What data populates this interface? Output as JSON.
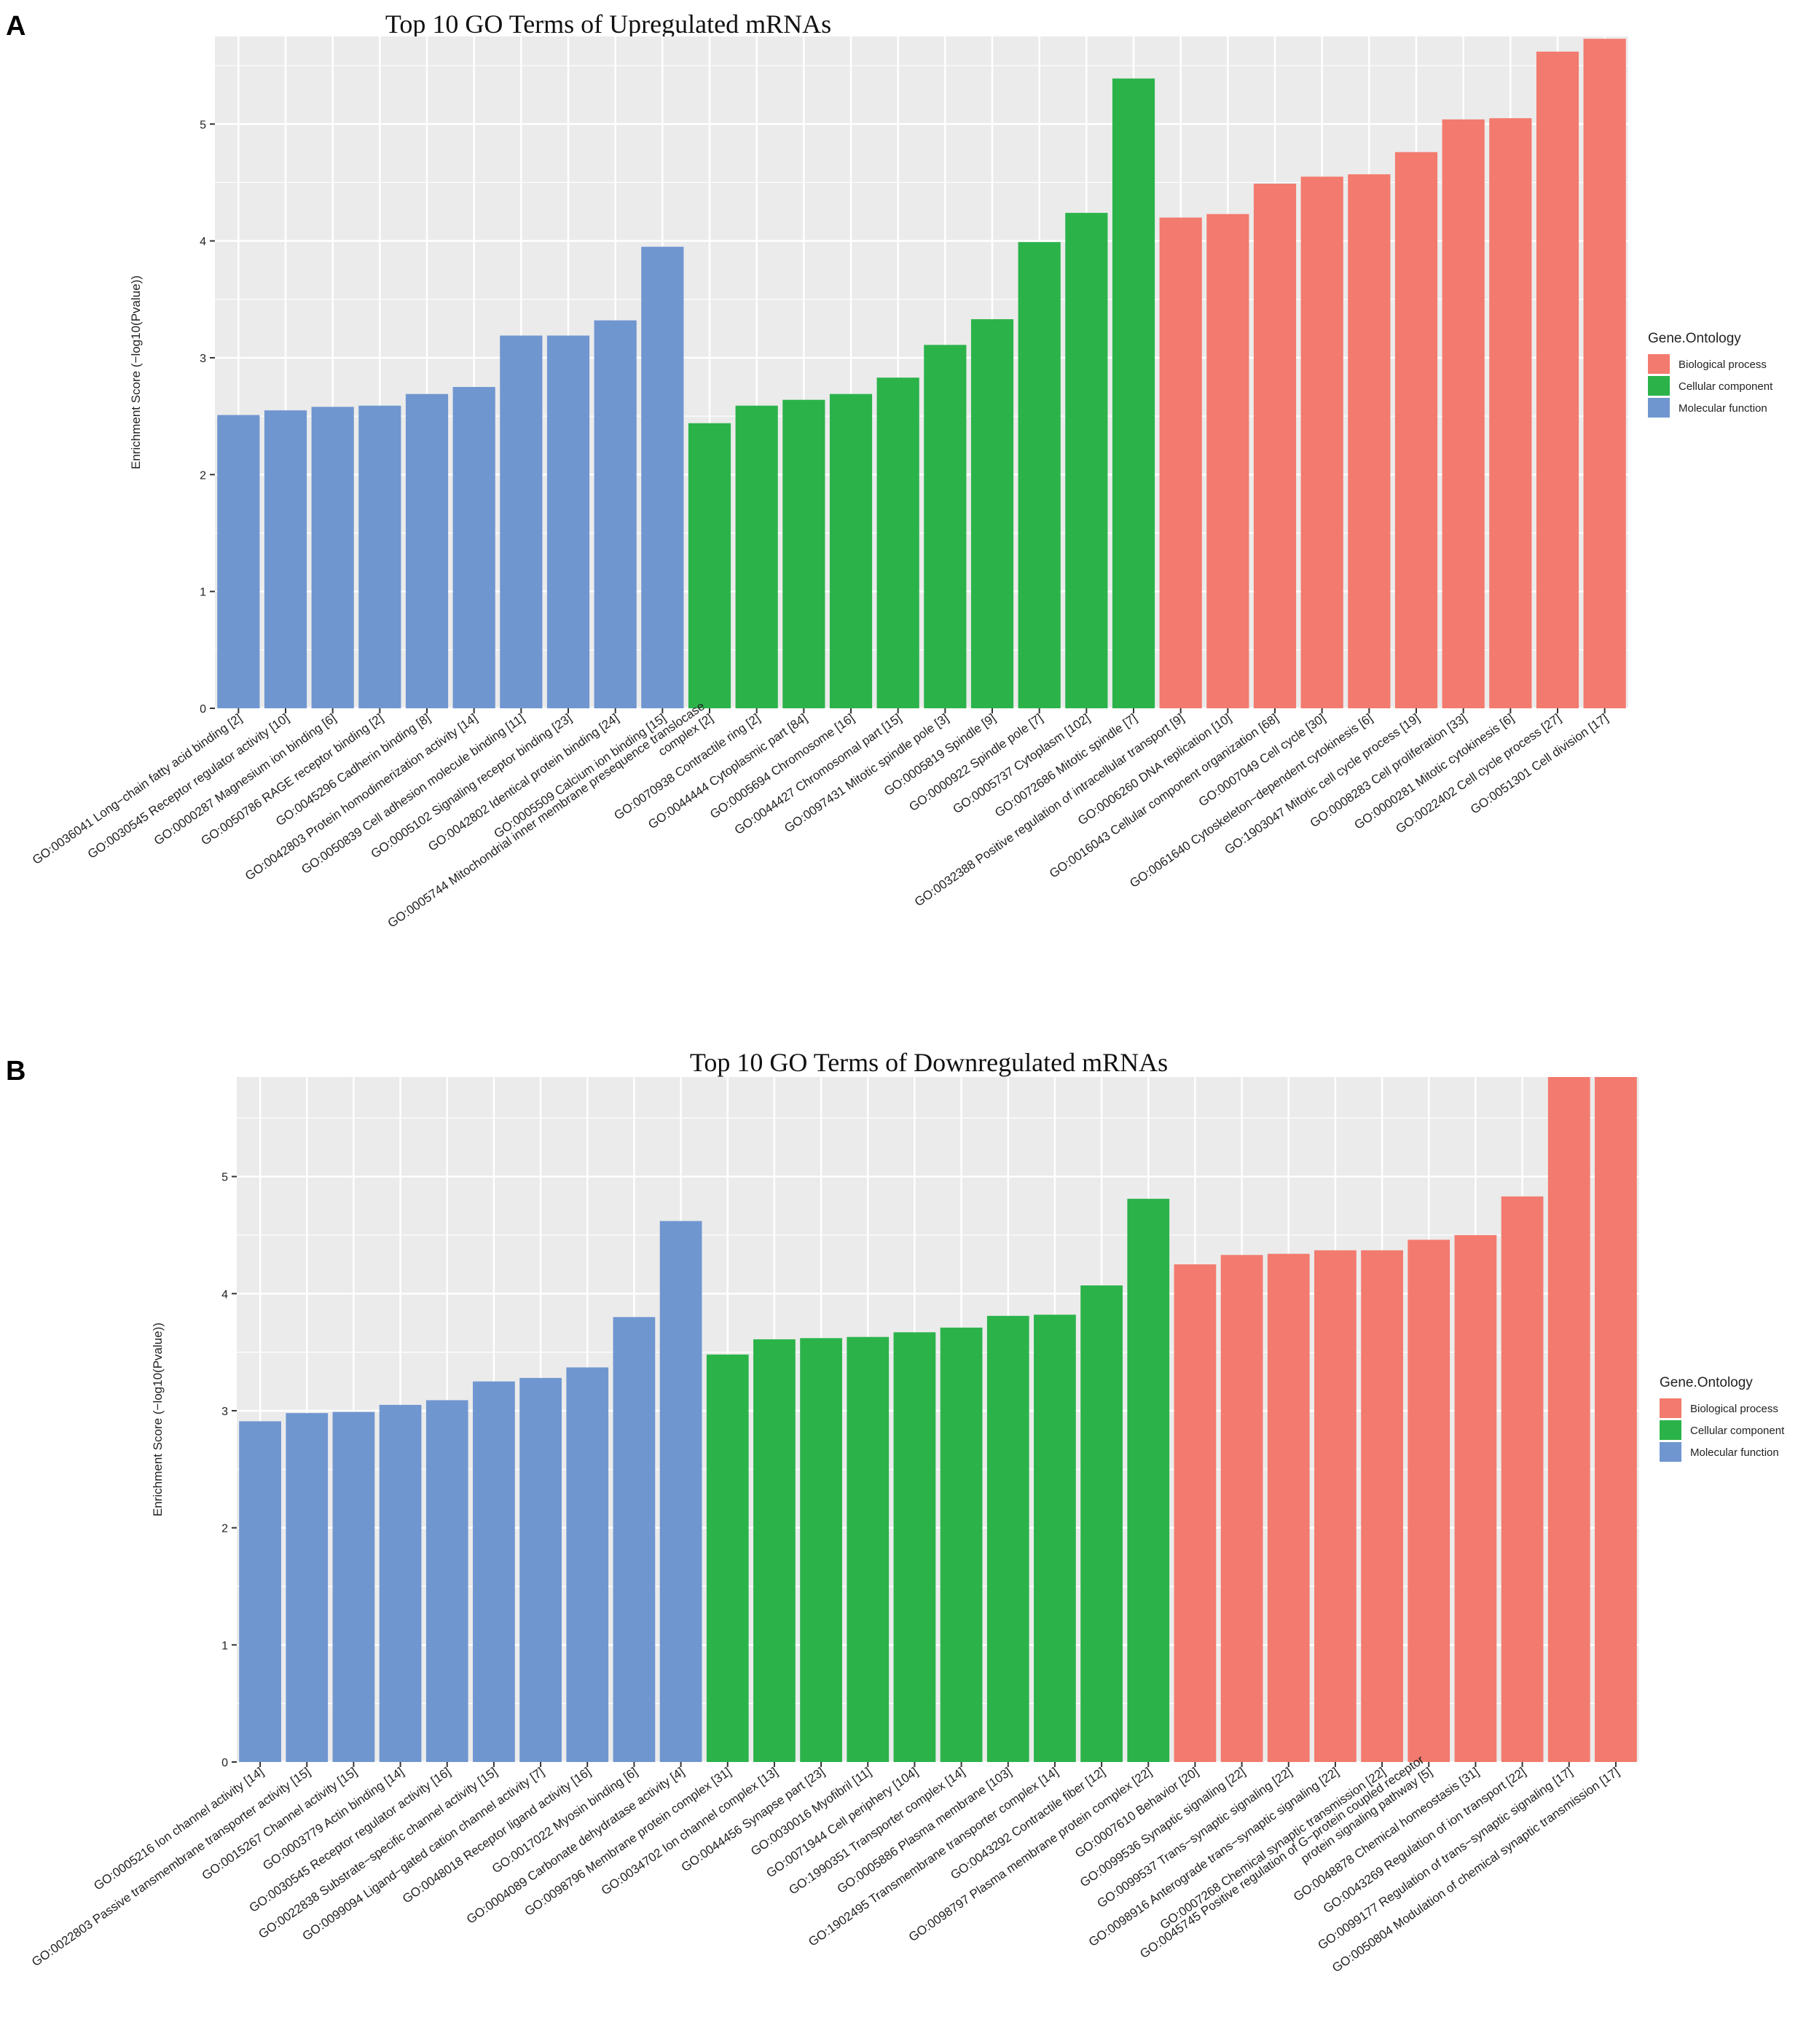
{
  "colors": {
    "Biological process": "#F37A6E",
    "Cellular component": "#2BB34A",
    "Molecular function": "#7096D0",
    "panel_bg": "#EBEBEB",
    "grid": "#FFFFFF",
    "text": "#222222"
  },
  "chart_data": [
    {
      "panel_label": "A",
      "type": "bar",
      "title": "Top 10 GO Terms of Upregulated  mRNAs",
      "xlabel": "",
      "ylabel": "Enrichment Score (−log10(Pvalue))",
      "ylim": [
        0,
        5.75
      ],
      "yticks": [
        "0",
        "1",
        "2",
        "3",
        "4",
        "5"
      ],
      "legend": {
        "title": "Gene.Ontology",
        "position": "right",
        "items": [
          "Biological process",
          "Cellular component",
          "Molecular function"
        ]
      },
      "categories": [
        "GO:0036041 Long−chain fatty acid binding [2]",
        "GO:0030545 Receptor regulator activity [10]",
        "GO:0000287 Magnesium ion binding [6]",
        "GO:0050786 RAGE receptor binding [2]",
        "GO:0045296 Cadherin binding [8]",
        "GO:0042803 Protein homodimerization activity [14]",
        "GO:0050839 Cell adhesion molecule binding [11]",
        "GO:0005102 Signaling receptor binding [23]",
        "GO:0042802 Identical protein binding [24]",
        "GO:0005509 Calcium ion binding [15]",
        "GO:0005744 Mitochondrial inner membrane presequence translocase complex [2]",
        "GO:0070938 Contractile ring [2]",
        "GO:0044444 Cytoplasmic part [84]",
        "GO:0005694 Chromosome [16]",
        "GO:0044427 Chromosomal part [15]",
        "GO:0097431 Mitotic spindle pole [3]",
        "GO:0005819 Spindle [9]",
        "GO:0000922 Spindle pole [7]",
        "GO:0005737 Cytoplasm [102]",
        "GO:0072686 Mitotic spindle [7]",
        "GO:0032388 Positive regulation of intracellular transport [9]",
        "GO:0006260 DNA replication [10]",
        "GO:0016043 Cellular component organization [68]",
        "GO:0007049 Cell cycle [30]",
        "GO:0061640 Cytoskeleton−dependent cytokinesis [6]",
        "GO:1903047 Mitotic cell cycle process [19]",
        "GO:0008283 Cell proliferation [33]",
        "GO:0000281 Mitotic cytokinesis [6]",
        "GO:0022402 Cell cycle process [27]",
        "GO:0051301 Cell division [17]"
      ],
      "label_lines": {
        "10": [
          "GO:0005744 Mitochondrial inner membrane presequence translocase",
          "complex [2]"
        ]
      },
      "values": [
        2.51,
        2.55,
        2.58,
        2.59,
        2.69,
        2.75,
        3.19,
        3.19,
        3.32,
        3.95,
        2.44,
        2.59,
        2.64,
        2.69,
        2.83,
        3.11,
        3.33,
        3.99,
        4.24,
        5.39,
        4.2,
        4.23,
        4.49,
        4.55,
        4.57,
        4.76,
        5.04,
        5.05,
        5.62,
        5.73
      ],
      "groups": [
        "Molecular function",
        "Molecular function",
        "Molecular function",
        "Molecular function",
        "Molecular function",
        "Molecular function",
        "Molecular function",
        "Molecular function",
        "Molecular function",
        "Molecular function",
        "Cellular component",
        "Cellular component",
        "Cellular component",
        "Cellular component",
        "Cellular component",
        "Cellular component",
        "Cellular component",
        "Cellular component",
        "Cellular component",
        "Cellular component",
        "Biological process",
        "Biological process",
        "Biological process",
        "Biological process",
        "Biological process",
        "Biological process",
        "Biological process",
        "Biological process",
        "Biological process",
        "Biological process"
      ]
    },
    {
      "panel_label": "B",
      "type": "bar",
      "title": "Top 10 GO Terms of Downregulated  mRNAs",
      "xlabel": "",
      "ylabel": "Enrichment Score (−log10(Pvalue))",
      "ylim": [
        0,
        5.85
      ],
      "yticks": [
        "0",
        "1",
        "2",
        "3",
        "4",
        "5"
      ],
      "legend": {
        "title": "Gene.Ontology",
        "position": "right",
        "items": [
          "Biological process",
          "Cellular component",
          "Molecular function"
        ]
      },
      "categories": [
        "GO:0005216 Ion channel activity [14]",
        "GO:0022803 Passive transmembrane transporter activity [15]",
        "GO:0015267 Channel activity [15]",
        "GO:0003779 Actin binding [14]",
        "GO:0030545 Receptor regulator activity [16]",
        "GO:0022838 Substrate−specific channel activity [15]",
        "GO:0099094 Ligand−gated cation channel activity [7]",
        "GO:0048018 Receptor ligand activity [16]",
        "GO:0017022 Myosin binding [6]",
        "GO:0004089 Carbonate dehydratase activity [4]",
        "GO:0098796 Membrane protein complex [31]",
        "GO:0034702 Ion channel complex [13]",
        "GO:0044456 Synapse part [23]",
        "GO:0030016 Myofibril [11]",
        "GO:0071944 Cell periphery [104]",
        "GO:1990351 Transporter complex [14]",
        "GO:0005886 Plasma membrane [103]",
        "GO:1902495 Transmembrane transporter complex [14]",
        "GO:0043292 Contractile fiber [12]",
        "GO:0098797 Plasma membrane protein complex [22]",
        "GO:0007610 Behavior [20]",
        "GO:0099536 Synaptic signaling [22]",
        "GO:0099537 Trans−synaptic signaling [22]",
        "GO:0098916 Anterograde trans−synaptic signaling [22]",
        "GO:0007268 Chemical synaptic transmission [22]",
        "GO:0045745 Positive regulation of G−protein coupled receptor protein signaling pathway [5]",
        "GO:0048878 Chemical homeostasis [31]",
        "GO:0043269 Regulation of ion transport [22]",
        "GO:0099177 Regulation of trans−synaptic signaling [17]",
        "GO:0050804 Modulation of chemical synaptic transmission [17]"
      ],
      "label_lines": {
        "25": [
          "GO:0045745 Positive regulation of G−protein coupled receptor",
          "protein signaling pathway [5]"
        ]
      },
      "values": [
        2.91,
        2.98,
        2.99,
        3.05,
        3.09,
        3.25,
        3.28,
        3.37,
        3.8,
        4.62,
        3.48,
        3.61,
        3.62,
        3.63,
        3.67,
        3.71,
        3.81,
        3.82,
        4.07,
        4.81,
        4.25,
        4.33,
        4.34,
        4.37,
        4.37,
        4.46,
        4.5,
        4.83,
        5.85,
        5.85
      ],
      "groups": [
        "Molecular function",
        "Molecular function",
        "Molecular function",
        "Molecular function",
        "Molecular function",
        "Molecular function",
        "Molecular function",
        "Molecular function",
        "Molecular function",
        "Molecular function",
        "Cellular component",
        "Cellular component",
        "Cellular component",
        "Cellular component",
        "Cellular component",
        "Cellular component",
        "Cellular component",
        "Cellular component",
        "Cellular component",
        "Cellular component",
        "Biological process",
        "Biological process",
        "Biological process",
        "Biological process",
        "Biological process",
        "Biological process",
        "Biological process",
        "Biological process",
        "Biological process",
        "Biological process"
      ]
    }
  ]
}
